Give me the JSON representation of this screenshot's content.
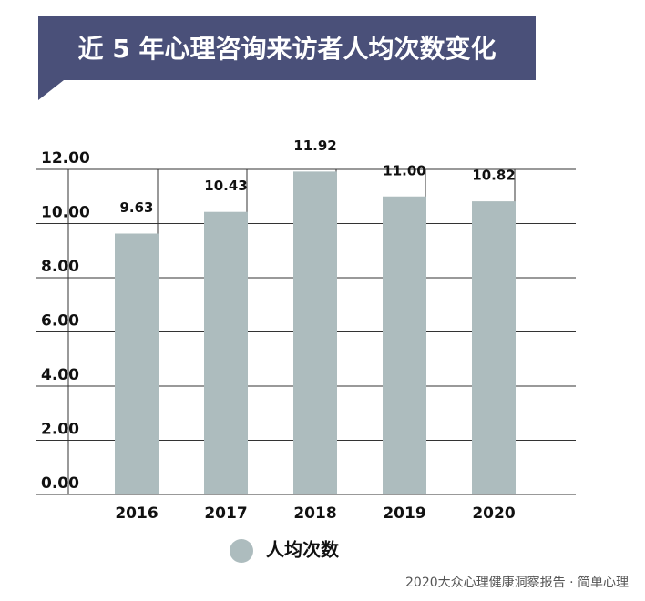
{
  "chart_data": {
    "type": "bar",
    "title": "近 5 年心理咨询来访者人均次数变化",
    "categories": [
      "2016",
      "2017",
      "2018",
      "2019",
      "2020"
    ],
    "series": [
      {
        "name": "人均次数",
        "color": "#adbcbe",
        "values": [
          9.63,
          10.43,
          11.92,
          11.0,
          10.82
        ],
        "value_labels": [
          "9.63",
          "10.43",
          "11.92",
          "11.00",
          "10.82"
        ]
      }
    ],
    "ylim": [
      0,
      12
    ],
    "yticks": [
      {
        "value": 0,
        "label": "0.00"
      },
      {
        "value": 2,
        "label": "2.00"
      },
      {
        "value": 4,
        "label": "4.00"
      },
      {
        "value": 6,
        "label": "6.00"
      },
      {
        "value": 8,
        "label": "8.00"
      },
      {
        "value": 10,
        "label": "10.00"
      },
      {
        "value": 12,
        "label": "12.00"
      }
    ],
    "grid": true,
    "source": "2020大众心理健康洞察报告 · 简单心理"
  }
}
